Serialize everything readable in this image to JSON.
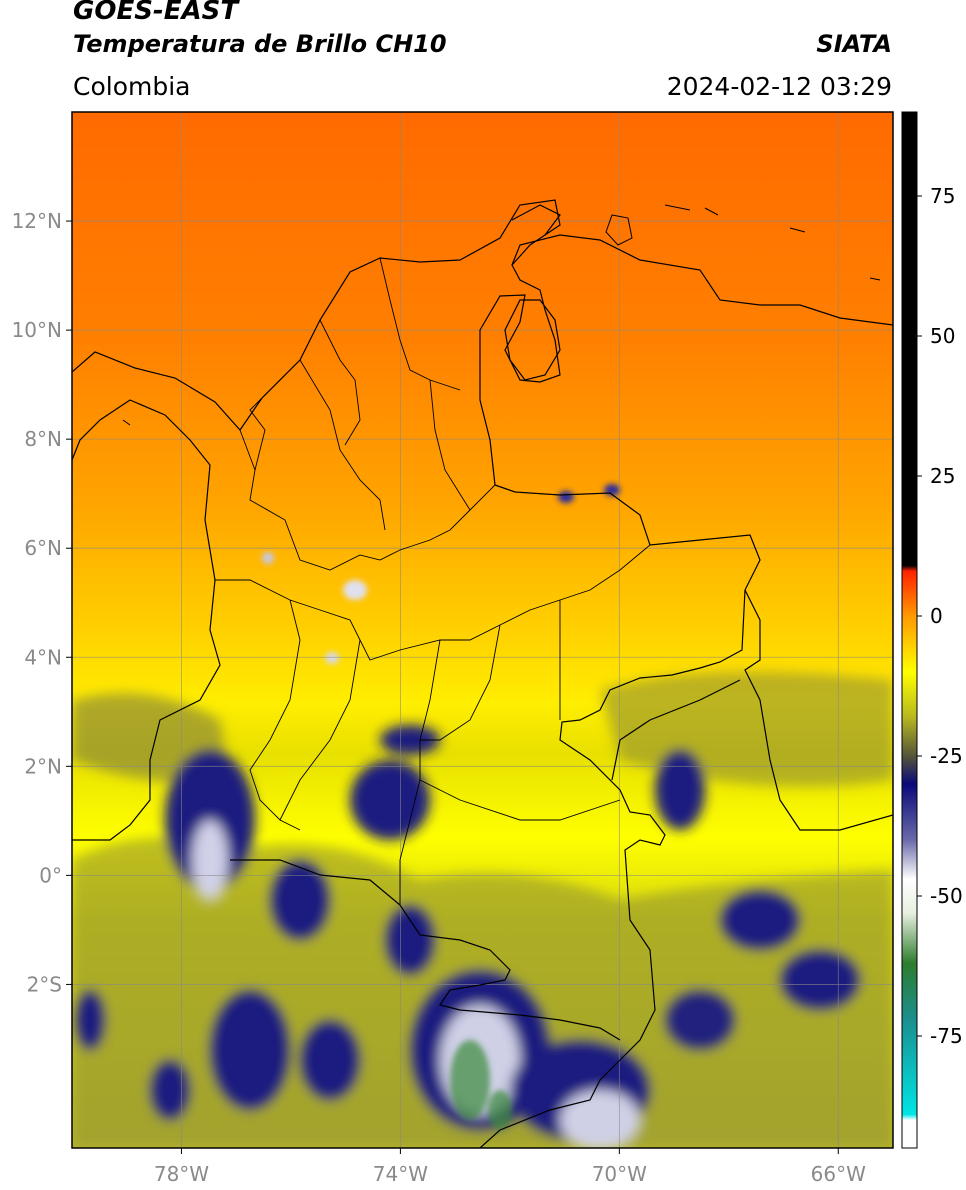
{
  "header": {
    "satellite": "GOES-EAST",
    "product": "Temperatura de Brillo CH10",
    "region": "Colombia",
    "agency": "SIATA",
    "datetime": "2024-02-12 03:29"
  },
  "map": {
    "lon_range": [
      -80,
      -65
    ],
    "lat_range": [
      -5,
      14
    ],
    "lon_ticks": [
      {
        "value": -78,
        "label": "78°W"
      },
      {
        "value": -74,
        "label": "74°W"
      },
      {
        "value": -70,
        "label": "70°W"
      },
      {
        "value": -66,
        "label": "66°W"
      }
    ],
    "lat_ticks": [
      {
        "value": 12,
        "label": "12°N"
      },
      {
        "value": 10,
        "label": "10°N"
      },
      {
        "value": 8,
        "label": "8°N"
      },
      {
        "value": 6,
        "label": "6°N"
      },
      {
        "value": 4,
        "label": "4°N"
      },
      {
        "value": 2,
        "label": "2°N"
      },
      {
        "value": 0,
        "label": "0°"
      },
      {
        "value": -2,
        "label": "2°S"
      }
    ],
    "grid": true
  },
  "colorbar": {
    "range": [
      -95,
      90
    ],
    "ticks": [
      {
        "value": 75,
        "label": "75"
      },
      {
        "value": 50,
        "label": "50"
      },
      {
        "value": 25,
        "label": "25"
      },
      {
        "value": 0,
        "label": "0"
      },
      {
        "value": -25,
        "label": "-25"
      },
      {
        "value": -50,
        "label": "-50"
      },
      {
        "value": -75,
        "label": "-75"
      }
    ],
    "stops": [
      {
        "value": -95,
        "color": "#ffffff"
      },
      {
        "value": -90,
        "color": "#ffffff"
      },
      {
        "value": -89,
        "color": "#00e5e5"
      },
      {
        "value": -72,
        "color": "#1a8f8f"
      },
      {
        "value": -62,
        "color": "#2e7d2e"
      },
      {
        "value": -53,
        "color": "#e8f0e0"
      },
      {
        "value": -47,
        "color": "#ffffff"
      },
      {
        "value": -40,
        "color": "#6a6aaa"
      },
      {
        "value": -30,
        "color": "#0a0a7a"
      },
      {
        "value": -25,
        "color": "#55553a"
      },
      {
        "value": -18,
        "color": "#b8b820"
      },
      {
        "value": -10,
        "color": "#ffff00"
      },
      {
        "value": 0,
        "color": "#ff9900"
      },
      {
        "value": 8,
        "color": "#ff2200"
      },
      {
        "value": 9,
        "color": "#000000"
      },
      {
        "value": 90,
        "color": "#000000"
      }
    ]
  }
}
